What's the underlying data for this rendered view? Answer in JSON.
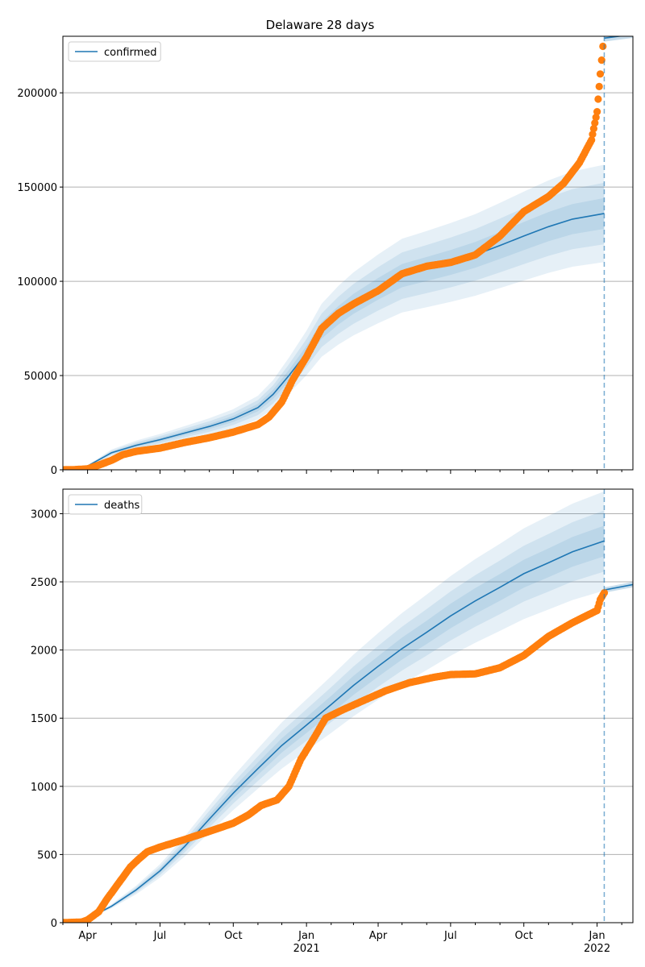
{
  "colors": {
    "model": "#1f77b4",
    "observed": "#ff7f0e",
    "band": "#1f77b4",
    "grid": "#b0b0b0",
    "axes": "#000000",
    "forecast_line": "#1f77b4"
  },
  "chart_data": [
    {
      "type": "line",
      "title": "Delaware 28 days",
      "legend": [
        "confirmed"
      ],
      "legend_position": "top-left",
      "grid": "horizontal",
      "x_range": [
        "2020-03-01",
        "2022-02-15"
      ],
      "ylim": [
        0,
        230000
      ],
      "yticks": [
        0,
        50000,
        100000,
        150000,
        200000
      ],
      "forecast_start": "2022-01-10",
      "series": [
        {
          "name": "confirmed",
          "kind": "model-line",
          "points": [
            [
              "2020-03-10",
              0
            ],
            [
              "2020-04-01",
              2000
            ],
            [
              "2020-05-01",
              9000
            ],
            [
              "2020-06-01",
              13000
            ],
            [
              "2020-07-01",
              16000
            ],
            [
              "2020-08-01",
              19500
            ],
            [
              "2020-09-01",
              23000
            ],
            [
              "2020-10-01",
              27000
            ],
            [
              "2020-11-01",
              33000
            ],
            [
              "2020-11-20",
              40000
            ],
            [
              "2020-12-10",
              50000
            ],
            [
              "2021-01-01",
              62000
            ],
            [
              "2021-01-20",
              74000
            ],
            [
              "2021-02-10",
              82000
            ],
            [
              "2021-03-01",
              88000
            ],
            [
              "2021-04-01",
              96000
            ],
            [
              "2021-05-01",
              103000
            ],
            [
              "2021-06-01",
              106500
            ],
            [
              "2021-07-01",
              110000
            ],
            [
              "2021-08-01",
              114000
            ],
            [
              "2021-09-01",
              119000
            ],
            [
              "2021-10-01",
              124000
            ],
            [
              "2021-11-01",
              129000
            ],
            [
              "2021-12-01",
              133000
            ],
            [
              "2022-01-10",
              136000
            ]
          ],
          "forecast_points": [
            [
              "2022-01-10",
              229000
            ],
            [
              "2022-02-15",
              231000
            ]
          ],
          "bands": [
            [
              0.19,
              0.04
            ],
            [
              0.12,
              0.07
            ],
            [
              0.06,
              0.1
            ]
          ]
        },
        {
          "kind": "observed",
          "points": [
            [
              "2020-03-01",
              0
            ],
            [
              "2020-03-15",
              100
            ],
            [
              "2020-04-01",
              500
            ],
            [
              "2020-04-15",
              2500
            ],
            [
              "2020-05-01",
              5000
            ],
            [
              "2020-05-15",
              8000
            ],
            [
              "2020-06-01",
              9800
            ],
            [
              "2020-07-01",
              11500
            ],
            [
              "2020-08-01",
              14500
            ],
            [
              "2020-09-01",
              17000
            ],
            [
              "2020-10-01",
              20000
            ],
            [
              "2020-11-01",
              24000
            ],
            [
              "2020-11-15",
              28000
            ],
            [
              "2020-12-01",
              36000
            ],
            [
              "2020-12-15",
              48000
            ],
            [
              "2021-01-01",
              60000
            ],
            [
              "2021-01-20",
              75000
            ],
            [
              "2021-02-10",
              83000
            ],
            [
              "2021-03-01",
              88000
            ],
            [
              "2021-04-01",
              95000
            ],
            [
              "2021-05-01",
              104000
            ],
            [
              "2021-06-01",
              108000
            ],
            [
              "2021-07-01",
              110000
            ],
            [
              "2021-08-01",
              114000
            ],
            [
              "2021-09-01",
              124000
            ],
            [
              "2021-10-01",
              137000
            ],
            [
              "2021-11-01",
              145000
            ],
            [
              "2021-11-20",
              152000
            ],
            [
              "2021-12-10",
              163000
            ],
            [
              "2021-12-25",
              175000
            ],
            [
              "2022-01-01",
              190000
            ],
            [
              "2022-01-05",
              210000
            ],
            [
              "2022-01-10",
              232000
            ]
          ]
        }
      ]
    },
    {
      "type": "line",
      "legend": [
        "deaths"
      ],
      "legend_position": "top-left",
      "grid": "horizontal",
      "x_range": [
        "2020-03-01",
        "2022-02-15"
      ],
      "x_tick_labels": [
        "Apr",
        "Jul",
        "Oct",
        "Jan\n2021",
        "Apr",
        "Jul",
        "Oct",
        "Jan\n2022"
      ],
      "ylim": [
        0,
        3180
      ],
      "yticks": [
        0,
        500,
        1000,
        1500,
        2000,
        2500,
        3000
      ],
      "forecast_start": "2022-01-10",
      "series": [
        {
          "name": "deaths",
          "kind": "model-line",
          "points": [
            [
              "2020-03-10",
              0
            ],
            [
              "2020-04-01",
              30
            ],
            [
              "2020-05-01",
              120
            ],
            [
              "2020-06-01",
              240
            ],
            [
              "2020-07-01",
              380
            ],
            [
              "2020-08-01",
              560
            ],
            [
              "2020-09-01",
              760
            ],
            [
              "2020-10-01",
              950
            ],
            [
              "2020-11-01",
              1130
            ],
            [
              "2020-12-01",
              1300
            ],
            [
              "2021-01-01",
              1450
            ],
            [
              "2021-02-01",
              1600
            ],
            [
              "2021-03-01",
              1740
            ],
            [
              "2021-04-01",
              1880
            ],
            [
              "2021-05-01",
              2010
            ],
            [
              "2021-06-01",
              2130
            ],
            [
              "2021-07-01",
              2250
            ],
            [
              "2021-08-01",
              2360
            ],
            [
              "2021-09-01",
              2460
            ],
            [
              "2021-10-01",
              2560
            ],
            [
              "2021-11-01",
              2640
            ],
            [
              "2021-12-01",
              2720
            ],
            [
              "2022-01-10",
              2800
            ]
          ],
          "forecast_points": [
            [
              "2022-01-10",
              2440
            ],
            [
              "2022-02-15",
              2480
            ]
          ],
          "bands": [
            [
              0.13,
              0.2
            ],
            [
              0.08,
              0.14
            ],
            [
              0.04,
              0.08
            ]
          ]
        },
        {
          "kind": "observed",
          "points": [
            [
              "2020-03-01",
              0
            ],
            [
              "2020-03-25",
              5
            ],
            [
              "2020-04-01",
              20
            ],
            [
              "2020-04-15",
              80
            ],
            [
              "2020-04-25",
              170
            ],
            [
              "2020-05-05",
              250
            ],
            [
              "2020-05-15",
              330
            ],
            [
              "2020-05-25",
              410
            ],
            [
              "2020-06-05",
              470
            ],
            [
              "2020-06-15",
              520
            ],
            [
              "2020-07-01",
              555
            ],
            [
              "2020-08-01",
              610
            ],
            [
              "2020-09-01",
              670
            ],
            [
              "2020-10-01",
              730
            ],
            [
              "2020-10-20",
              790
            ],
            [
              "2020-11-05",
              860
            ],
            [
              "2020-11-25",
              900
            ],
            [
              "2020-12-10",
              1000
            ],
            [
              "2020-12-25",
              1200
            ],
            [
              "2021-01-10",
              1350
            ],
            [
              "2021-01-25",
              1500
            ],
            [
              "2021-02-15",
              1560
            ],
            [
              "2021-03-10",
              1620
            ],
            [
              "2021-04-10",
              1700
            ],
            [
              "2021-05-10",
              1760
            ],
            [
              "2021-06-10",
              1800
            ],
            [
              "2021-07-01",
              1820
            ],
            [
              "2021-08-01",
              1825
            ],
            [
              "2021-09-01",
              1870
            ],
            [
              "2021-10-01",
              1960
            ],
            [
              "2021-11-01",
              2100
            ],
            [
              "2021-12-01",
              2200
            ],
            [
              "2021-12-25",
              2270
            ],
            [
              "2022-01-01",
              2290
            ],
            [
              "2022-01-05",
              2370
            ],
            [
              "2022-01-10",
              2420
            ]
          ]
        }
      ]
    }
  ]
}
